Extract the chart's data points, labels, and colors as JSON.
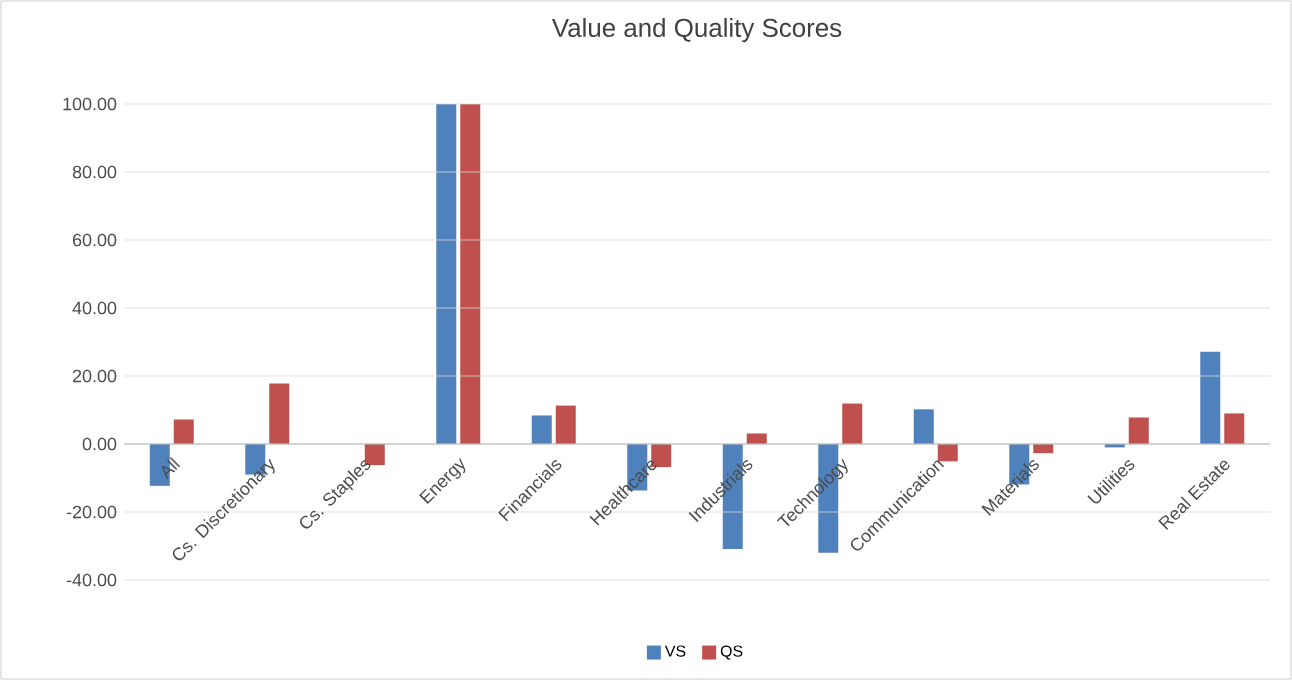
{
  "chart_data": {
    "type": "bar",
    "title": "Value and Quality Scores",
    "categories": [
      "All",
      "Cs. Discretionary",
      "Cs. Staples",
      "Energy",
      "Financials",
      "Healthcare",
      "Industrials",
      "Technology",
      "Communication",
      "Materials",
      "Utilities",
      "Real Estate"
    ],
    "series": [
      {
        "name": "VS",
        "color": "#4f81bd",
        "values": [
          -12.3,
          -9,
          0,
          100,
          8.4,
          -13.7,
          -30.9,
          -32,
          10.2,
          -11.9,
          -1,
          27.1
        ]
      },
      {
        "name": "QS",
        "color": "#c0504d",
        "values": [
          7.2,
          17.8,
          -6.2,
          100,
          11.3,
          -6.8,
          3.1,
          11.9,
          -5.1,
          -2.7,
          7.8,
          9.0
        ]
      }
    ],
    "ylim": [
      -40,
      100
    ],
    "yticks": [
      {
        "value": -40,
        "label": "-40.00"
      },
      {
        "value": -20,
        "label": "-20.00"
      },
      {
        "value": 0,
        "label": "0.00"
      },
      {
        "value": 20,
        "label": "20.00"
      },
      {
        "value": 40,
        "label": "40.00"
      },
      {
        "value": 60,
        "label": "60.00"
      },
      {
        "value": 80,
        "label": "80.00"
      },
      {
        "value": 100,
        "label": "100.00"
      }
    ],
    "grid": "y",
    "legend": "bottom"
  }
}
